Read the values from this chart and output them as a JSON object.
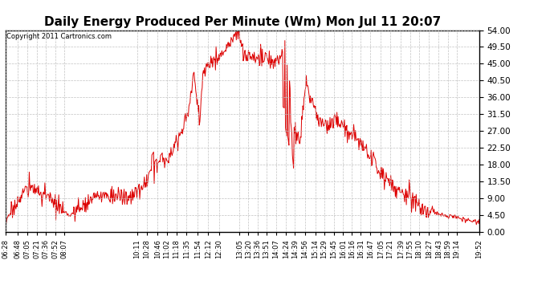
{
  "title": "Daily Energy Produced Per Minute (Wm) Mon Jul 11 20:07",
  "copyright": "Copyright 2011 Cartronics.com",
  "title_fontsize": 11,
  "background_color": "#ffffff",
  "plot_bg_color": "#ffffff",
  "line_color": "#dd0000",
  "grid_color": "#bbbbbb",
  "ylim": [
    0,
    54.0
  ],
  "yticks": [
    0.0,
    4.5,
    9.0,
    13.5,
    18.0,
    22.5,
    27.0,
    31.5,
    36.0,
    40.5,
    45.0,
    49.5,
    54.0
  ],
  "xtick_labels": [
    "06:28",
    "06:48",
    "07:05",
    "07:21",
    "07:36",
    "07:52",
    "08:07",
    "10:11",
    "10:28",
    "10:46",
    "11:02",
    "11:18",
    "11:35",
    "11:54",
    "12:12",
    "12:30",
    "13:05",
    "13:20",
    "13:36",
    "13:51",
    "14:07",
    "14:24",
    "14:39",
    "14:56",
    "15:14",
    "15:29",
    "15:45",
    "16:01",
    "16:16",
    "16:31",
    "16:47",
    "17:05",
    "17:21",
    "17:39",
    "17:55",
    "18:10",
    "18:27",
    "18:43",
    "18:59",
    "19:14",
    "19:52"
  ],
  "total_minutes": 804,
  "key_points_t": [
    0,
    10,
    20,
    30,
    40,
    55,
    70,
    90,
    100,
    110,
    120,
    130,
    140,
    150,
    160,
    175,
    190,
    210,
    240,
    270,
    300,
    310,
    315,
    320,
    325,
    330,
    335,
    340,
    345,
    355,
    365,
    380,
    390,
    395,
    400,
    405,
    415,
    420,
    430,
    440,
    455,
    465,
    470,
    475,
    480,
    485,
    490,
    500,
    510,
    520,
    530,
    540,
    550,
    560,
    570,
    580,
    595,
    610,
    620,
    630,
    640,
    655,
    670,
    685,
    700,
    715,
    730,
    745,
    760,
    775,
    804
  ],
  "key_points_v": [
    2.5,
    5.5,
    8.0,
    10.5,
    12.0,
    11.0,
    9.5,
    6.5,
    5.0,
    4.5,
    5.5,
    7.0,
    8.0,
    9.0,
    9.5,
    10.0,
    9.5,
    9.0,
    13.0,
    19.0,
    27.0,
    32.0,
    38.0,
    42.0,
    35.0,
    30.0,
    42.0,
    44.0,
    45.5,
    46.0,
    47.5,
    49.5,
    53.0,
    54.0,
    51.0,
    46.0,
    47.5,
    47.0,
    46.5,
    46.0,
    45.5,
    46.0,
    48.5,
    48.0,
    42.5,
    36.0,
    27.0,
    25.0,
    40.0,
    35.0,
    30.0,
    28.0,
    29.0,
    30.0,
    28.5,
    27.0,
    25.0,
    22.0,
    20.0,
    17.0,
    15.0,
    13.5,
    10.0,
    9.5,
    7.5,
    6.0,
    5.0,
    4.5,
    4.0,
    3.5,
    2.5
  ]
}
